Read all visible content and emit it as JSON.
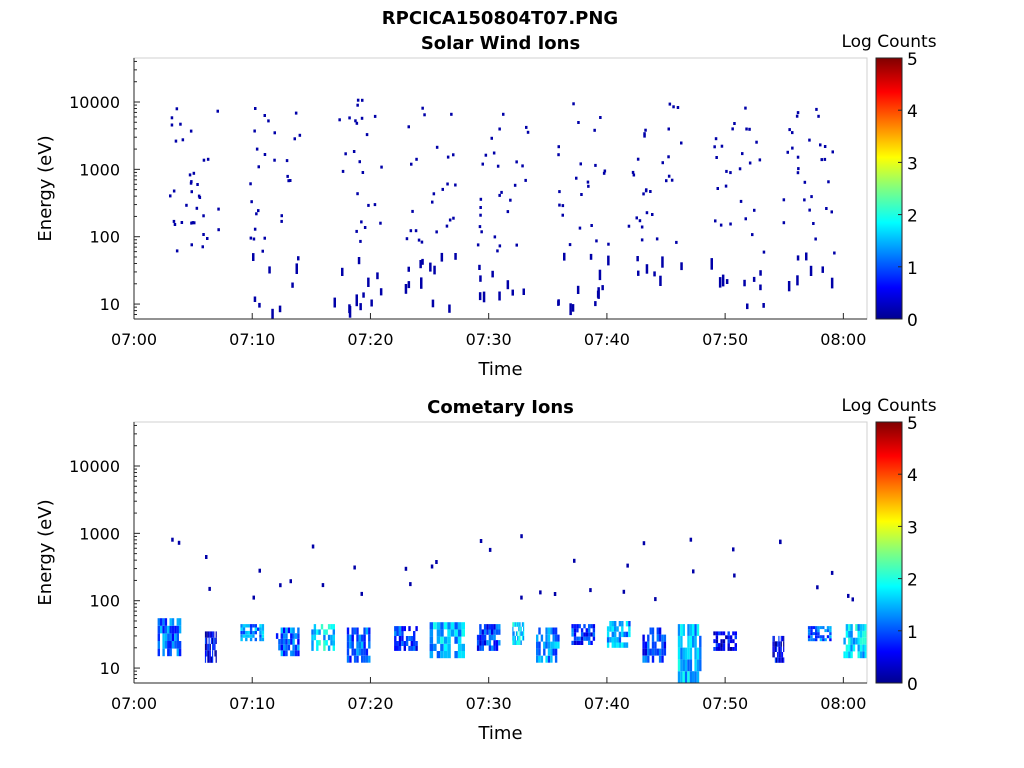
{
  "figure": {
    "title": "RPCICA150804T07.PNG"
  },
  "chart_data": [
    {
      "type": "heatmap",
      "title": "Solar Wind Ions",
      "xlabel": "Time",
      "ylabel": "Energy (eV)",
      "y_scale": "log",
      "xlim": [
        "07:00",
        "08:02"
      ],
      "ylim": [
        6,
        45000
      ],
      "x_ticks": [
        "07:00",
        "07:10",
        "07:20",
        "07:30",
        "07:40",
        "07:50",
        "08:00"
      ],
      "y_ticks": [
        "10",
        "100",
        "1000",
        "10000"
      ],
      "colorbar": {
        "label": "Log Counts",
        "range": [
          0,
          5
        ],
        "ticks": [
          "0",
          "1",
          "2",
          "3",
          "4",
          "5"
        ]
      },
      "grid": false,
      "count_bursts": [
        {
          "time": "07:05",
          "energy_low_eV": 50,
          "energy_high_eV": 9000,
          "log_counts": 0.2
        },
        {
          "time": "07:12",
          "energy_low_eV": 8,
          "energy_high_eV": 9000,
          "log_counts": 0.2
        },
        {
          "time": "07:19",
          "energy_low_eV": 8,
          "energy_high_eV": 12000,
          "log_counts": 0.2
        },
        {
          "time": "07:25",
          "energy_low_eV": 8,
          "energy_high_eV": 10000,
          "log_counts": 0.2
        },
        {
          "time": "07:31",
          "energy_low_eV": 15,
          "energy_high_eV": 10000,
          "log_counts": 0.2
        },
        {
          "time": "07:38",
          "energy_low_eV": 10,
          "energy_high_eV": 10000,
          "log_counts": 0.2
        },
        {
          "time": "07:44",
          "energy_low_eV": 20,
          "energy_high_eV": 12000,
          "log_counts": 0.2
        },
        {
          "time": "07:51",
          "energy_low_eV": 10,
          "energy_high_eV": 10000,
          "log_counts": 0.2
        },
        {
          "time": "07:57",
          "energy_low_eV": 20,
          "energy_high_eV": 10000,
          "log_counts": 0.2
        }
      ]
    },
    {
      "type": "heatmap",
      "title": "Cometary Ions",
      "xlabel": "Time",
      "ylabel": "Energy (eV)",
      "y_scale": "log",
      "xlim": [
        "07:00",
        "08:02"
      ],
      "ylim": [
        6,
        45000
      ],
      "x_ticks": [
        "07:00",
        "07:10",
        "07:20",
        "07:30",
        "07:40",
        "07:50",
        "08:00"
      ],
      "y_ticks": [
        "10",
        "100",
        "1000",
        "10000"
      ],
      "colorbar": {
        "label": "Log Counts",
        "range": [
          0,
          5
        ],
        "ticks": [
          "0",
          "1",
          "2",
          "3",
          "4",
          "5"
        ]
      },
      "grid": false,
      "count_bands": [
        {
          "time_start": "07:02",
          "time_end": "07:04",
          "energy_low_eV": 15,
          "energy_high_eV": 55,
          "log_counts": 1.0
        },
        {
          "time_start": "07:06",
          "time_end": "07:07",
          "energy_low_eV": 12,
          "energy_high_eV": 35,
          "log_counts": 0.5
        },
        {
          "time_start": "07:09",
          "time_end": "07:11",
          "energy_low_eV": 25,
          "energy_high_eV": 45,
          "log_counts": 1.2
        },
        {
          "time_start": "07:12",
          "time_end": "07:14",
          "energy_low_eV": 15,
          "energy_high_eV": 40,
          "log_counts": 1.0
        },
        {
          "time_start": "07:15",
          "time_end": "07:17",
          "energy_low_eV": 18,
          "energy_high_eV": 45,
          "log_counts": 1.6
        },
        {
          "time_start": "07:18",
          "time_end": "07:20",
          "energy_low_eV": 12,
          "energy_high_eV": 40,
          "log_counts": 1.0
        },
        {
          "time_start": "07:22",
          "time_end": "07:24",
          "energy_low_eV": 18,
          "energy_high_eV": 42,
          "log_counts": 0.8
        },
        {
          "time_start": "07:25",
          "time_end": "07:28",
          "energy_low_eV": 14,
          "energy_high_eV": 48,
          "log_counts": 1.4
        },
        {
          "time_start": "07:29",
          "time_end": "07:31",
          "energy_low_eV": 18,
          "energy_high_eV": 45,
          "log_counts": 0.8
        },
        {
          "time_start": "07:32",
          "time_end": "07:33",
          "energy_low_eV": 22,
          "energy_high_eV": 48,
          "log_counts": 1.6
        },
        {
          "time_start": "07:34",
          "time_end": "07:36",
          "energy_low_eV": 12,
          "energy_high_eV": 40,
          "log_counts": 1.2
        },
        {
          "time_start": "07:37",
          "time_end": "07:39",
          "energy_low_eV": 22,
          "energy_high_eV": 45,
          "log_counts": 0.8
        },
        {
          "time_start": "07:40",
          "time_end": "07:42",
          "energy_low_eV": 20,
          "energy_high_eV": 50,
          "log_counts": 1.3
        },
        {
          "time_start": "07:43",
          "time_end": "07:45",
          "energy_low_eV": 12,
          "energy_high_eV": 40,
          "log_counts": 0.8
        },
        {
          "time_start": "07:46",
          "time_end": "07:48",
          "energy_low_eV": 6,
          "energy_high_eV": 45,
          "log_counts": 1.4
        },
        {
          "time_start": "07:49",
          "time_end": "07:51",
          "energy_low_eV": 18,
          "energy_high_eV": 35,
          "log_counts": 0.4
        },
        {
          "time_start": "07:54",
          "time_end": "07:55",
          "energy_low_eV": 12,
          "energy_high_eV": 30,
          "log_counts": 0.4
        },
        {
          "time_start": "07:57",
          "time_end": "07:59",
          "energy_low_eV": 25,
          "energy_high_eV": 42,
          "log_counts": 1.0
        },
        {
          "time_start": "08:00",
          "time_end": "08:02",
          "energy_low_eV": 14,
          "energy_high_eV": 45,
          "log_counts": 1.6
        }
      ]
    }
  ]
}
